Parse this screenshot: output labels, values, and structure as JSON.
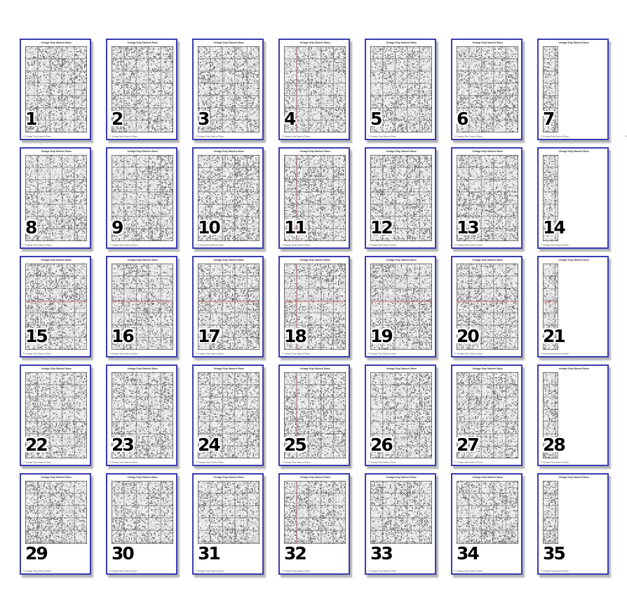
{
  "document": {
    "title": "Vintage Ship Stained Glass",
    "footer_left": "© Vintage Ship Stained Glass",
    "grid_columns": 7,
    "grid_rows": 5,
    "page_count": 35
  },
  "colors": {
    "page_border": "#3b3cae",
    "page_background": "#ffffff",
    "canvas_background": "#f5f5f5",
    "shadow": "#b4b4b4",
    "grid_line": "#555555",
    "center_line_red": "#e87c7c",
    "number_fill": "#000000",
    "number_outline": "#ffffff",
    "tiny_text": "#333333"
  },
  "pages": [
    {
      "number": "1",
      "page_label": "Page 1",
      "narrow": false,
      "short": false,
      "v_center_line": false,
      "h_center_line": false
    },
    {
      "number": "2",
      "page_label": "Page 2",
      "narrow": false,
      "short": false,
      "v_center_line": false,
      "h_center_line": false
    },
    {
      "number": "3",
      "page_label": "Page 3",
      "narrow": false,
      "short": false,
      "v_center_line": false,
      "h_center_line": false
    },
    {
      "number": "4",
      "page_label": "Page 4",
      "narrow": false,
      "short": false,
      "v_center_line": true,
      "h_center_line": false
    },
    {
      "number": "5",
      "page_label": "Page 5",
      "narrow": false,
      "short": false,
      "v_center_line": false,
      "h_center_line": false
    },
    {
      "number": "6",
      "page_label": "Page 6",
      "narrow": false,
      "short": false,
      "v_center_line": false,
      "h_center_line": false
    },
    {
      "number": "7",
      "page_label": "Page 7",
      "narrow": true,
      "short": false,
      "v_center_line": false,
      "h_center_line": false
    },
    {
      "number": "8",
      "page_label": "Page 8",
      "narrow": false,
      "short": false,
      "v_center_line": false,
      "h_center_line": false
    },
    {
      "number": "9",
      "page_label": "Page 9",
      "narrow": false,
      "short": false,
      "v_center_line": false,
      "h_center_line": false
    },
    {
      "number": "10",
      "page_label": "Page 10",
      "narrow": false,
      "short": false,
      "v_center_line": false,
      "h_center_line": false
    },
    {
      "number": "11",
      "page_label": "Page 11",
      "narrow": false,
      "short": false,
      "v_center_line": true,
      "h_center_line": false
    },
    {
      "number": "12",
      "page_label": "Page 12",
      "narrow": false,
      "short": false,
      "v_center_line": false,
      "h_center_line": false
    },
    {
      "number": "13",
      "page_label": "Page 13",
      "narrow": false,
      "short": false,
      "v_center_line": false,
      "h_center_line": false
    },
    {
      "number": "14",
      "page_label": "Page 14",
      "narrow": true,
      "short": false,
      "v_center_line": false,
      "h_center_line": false
    },
    {
      "number": "15",
      "page_label": "Page 15",
      "narrow": false,
      "short": false,
      "v_center_line": false,
      "h_center_line": true
    },
    {
      "number": "16",
      "page_label": "Page 16",
      "narrow": false,
      "short": false,
      "v_center_line": false,
      "h_center_line": true
    },
    {
      "number": "17",
      "page_label": "Page 17",
      "narrow": false,
      "short": false,
      "v_center_line": false,
      "h_center_line": true
    },
    {
      "number": "18",
      "page_label": "Page 18",
      "narrow": false,
      "short": false,
      "v_center_line": true,
      "h_center_line": true
    },
    {
      "number": "19",
      "page_label": "Page 19",
      "narrow": false,
      "short": false,
      "v_center_line": false,
      "h_center_line": true
    },
    {
      "number": "20",
      "page_label": "Page 20",
      "narrow": false,
      "short": false,
      "v_center_line": false,
      "h_center_line": true
    },
    {
      "number": "21",
      "page_label": "Page 21",
      "narrow": true,
      "short": false,
      "v_center_line": false,
      "h_center_line": true
    },
    {
      "number": "22",
      "page_label": "Page 22",
      "narrow": false,
      "short": false,
      "v_center_line": false,
      "h_center_line": false
    },
    {
      "number": "23",
      "page_label": "Page 23",
      "narrow": false,
      "short": false,
      "v_center_line": false,
      "h_center_line": false
    },
    {
      "number": "24",
      "page_label": "Page 24",
      "narrow": false,
      "short": false,
      "v_center_line": false,
      "h_center_line": false
    },
    {
      "number": "25",
      "page_label": "Page 25",
      "narrow": false,
      "short": false,
      "v_center_line": true,
      "h_center_line": false
    },
    {
      "number": "26",
      "page_label": "Page 26",
      "narrow": false,
      "short": false,
      "v_center_line": false,
      "h_center_line": false
    },
    {
      "number": "27",
      "page_label": "Page 27",
      "narrow": false,
      "short": false,
      "v_center_line": false,
      "h_center_line": false
    },
    {
      "number": "28",
      "page_label": "Page 28",
      "narrow": true,
      "short": false,
      "v_center_line": false,
      "h_center_line": false
    },
    {
      "number": "29",
      "page_label": "Page 29",
      "narrow": false,
      "short": true,
      "v_center_line": false,
      "h_center_line": false
    },
    {
      "number": "30",
      "page_label": "Page 30",
      "narrow": false,
      "short": true,
      "v_center_line": false,
      "h_center_line": false
    },
    {
      "number": "31",
      "page_label": "Page 31",
      "narrow": false,
      "short": true,
      "v_center_line": false,
      "h_center_line": false
    },
    {
      "number": "32",
      "page_label": "Page 32",
      "narrow": false,
      "short": true,
      "v_center_line": true,
      "h_center_line": false
    },
    {
      "number": "33",
      "page_label": "Page 33",
      "narrow": false,
      "short": true,
      "v_center_line": false,
      "h_center_line": false
    },
    {
      "number": "34",
      "page_label": "Page 34",
      "narrow": false,
      "short": true,
      "v_center_line": false,
      "h_center_line": false
    },
    {
      "number": "35",
      "page_label": "Page 35",
      "narrow": true,
      "short": true,
      "v_center_line": false,
      "h_center_line": false
    }
  ]
}
